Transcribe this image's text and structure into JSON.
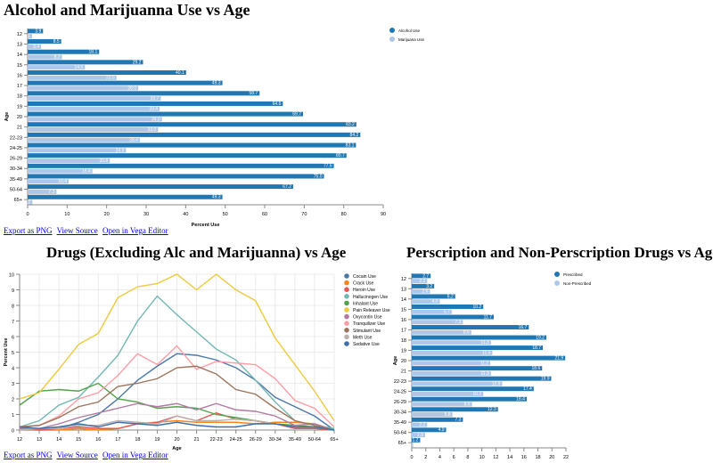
{
  "links": {
    "png": "Export as PNG",
    "source": "View Source",
    "editor": "Open in Vega Editor"
  },
  "colors": {
    "blue": "#1f77b4",
    "lightblue": "#aec7e8"
  },
  "chart_data": [
    {
      "type": "bar",
      "orientation": "horizontal",
      "title": "Alcohol and Marijuanna Use vs Age",
      "xlabel": "Percent Use",
      "ylabel": "Age",
      "xlim": [
        0,
        90
      ],
      "xticks": [
        "0",
        "10",
        "20",
        "30",
        "40",
        "50",
        "60",
        "70",
        "80",
        "90"
      ],
      "categories": [
        "12",
        "13",
        "14",
        "15",
        "16",
        "17",
        "18",
        "19",
        "20",
        "21",
        "22-23",
        "24-25",
        "26-29",
        "30-34",
        "35-49",
        "50-64",
        "65+"
      ],
      "series": [
        {
          "name": "Alcohol Use",
          "color": "#1f77b4",
          "values": [
            3.9,
            8.5,
            18.1,
            29.2,
            40.1,
            49.3,
            58.7,
            64.6,
            69.7,
            83.2,
            84.2,
            83.1,
            80.7,
            77.5,
            75.0,
            67.2,
            49.3
          ]
        },
        {
          "name": "Marijuana Use",
          "color": "#aec7e8",
          "values": [
            1.1,
            3.4,
            8.7,
            14.5,
            22.5,
            28.0,
            33.7,
            33.4,
            34.0,
            33.0,
            28.4,
            24.9,
            20.8,
            16.4,
            10.4,
            7.3,
            1.2
          ]
        }
      ],
      "legend": "top-right"
    },
    {
      "type": "line",
      "title": "Drugs (Excluding Alc and Marijuanna) vs Age",
      "xlabel": "Age",
      "ylabel": "Percent Use",
      "ylim": [
        0,
        10
      ],
      "yticks": [
        "0",
        "1",
        "2",
        "3",
        "4",
        "5",
        "6",
        "7",
        "8",
        "9",
        "10"
      ],
      "categories": [
        "12",
        "13",
        "14",
        "15",
        "16",
        "17",
        "18",
        "19",
        "20",
        "21",
        "22-23",
        "24-25",
        "26-29",
        "30-34",
        "35-49",
        "50-64",
        "65+"
      ],
      "series": [
        {
          "name": "Cocain Use",
          "color": "#4c78a8",
          "values": [
            0.1,
            0.1,
            0.1,
            0.5,
            1.0,
            2.0,
            3.2,
            4.1,
            4.9,
            4.8,
            4.5,
            4.0,
            3.2,
            2.1,
            1.5,
            0.9,
            0.0
          ]
        },
        {
          "name": "Crack Use",
          "color": "#f58518",
          "values": [
            0.0,
            0.0,
            0.0,
            0.1,
            0.0,
            0.1,
            0.4,
            0.5,
            0.6,
            0.5,
            0.5,
            0.5,
            0.4,
            0.5,
            0.5,
            0.4,
            0.0
          ]
        },
        {
          "name": "Heroin Use",
          "color": "#e45756",
          "values": [
            0.1,
            0.0,
            0.1,
            0.2,
            0.1,
            0.1,
            0.4,
            0.5,
            0.9,
            0.6,
            1.1,
            0.7,
            0.6,
            0.4,
            0.1,
            0.1,
            0.0
          ]
        },
        {
          "name": "Hallucinogen Use",
          "color": "#72b7b2",
          "values": [
            0.2,
            0.6,
            1.6,
            2.1,
            3.4,
            4.8,
            7.0,
            8.6,
            7.4,
            6.3,
            5.2,
            4.5,
            3.2,
            1.8,
            0.6,
            0.3,
            0.1
          ]
        },
        {
          "name": "Inhalant Use",
          "color": "#54a24b",
          "values": [
            1.6,
            2.5,
            2.6,
            2.5,
            3.0,
            2.0,
            1.8,
            1.4,
            1.5,
            1.4,
            1.0,
            0.8,
            0.6,
            0.4,
            0.3,
            0.2,
            0.0
          ]
        },
        {
          "name": "Pain Releaver Use",
          "color": "#eeca3b",
          "values": [
            2.0,
            2.4,
            3.9,
            5.5,
            6.2,
            8.5,
            9.2,
            9.4,
            10.0,
            9.0,
            10.0,
            9.0,
            8.3,
            5.9,
            4.2,
            2.5,
            0.6
          ]
        },
        {
          "name": "Oxycontin Use",
          "color": "#b279a2",
          "values": [
            0.1,
            0.1,
            0.4,
            0.8,
            1.1,
            1.4,
            1.7,
            1.5,
            1.7,
            1.3,
            1.7,
            1.3,
            1.2,
            0.9,
            0.3,
            0.4,
            0.0
          ]
        },
        {
          "name": "Tranquilizer Use",
          "color": "#ff9da6",
          "values": [
            0.2,
            0.3,
            0.9,
            2.0,
            2.4,
            3.5,
            4.9,
            4.2,
            5.4,
            3.9,
            4.4,
            4.3,
            4.2,
            3.3,
            1.9,
            1.4,
            0.2
          ]
        },
        {
          "name": "Stimulant Use",
          "color": "#9d755d",
          "values": [
            0.2,
            0.3,
            0.8,
            1.5,
            1.8,
            2.8,
            3.0,
            3.3,
            4.0,
            4.1,
            3.6,
            2.6,
            2.3,
            1.4,
            0.6,
            0.3,
            0.0
          ]
        },
        {
          "name": "Meth Use",
          "color": "#bab0ac",
          "values": [
            0.0,
            0.1,
            0.1,
            0.3,
            0.3,
            0.6,
            0.5,
            0.4,
            0.9,
            0.6,
            0.6,
            0.7,
            0.6,
            0.4,
            0.2,
            0.2,
            0.0
          ]
        },
        {
          "name": "Sedative Use",
          "color": "#3c6ea8",
          "values": [
            0.2,
            0.1,
            0.2,
            0.4,
            0.2,
            0.5,
            0.4,
            0.3,
            0.5,
            0.3,
            0.2,
            0.2,
            0.4,
            0.4,
            0.2,
            0.2,
            0.0
          ]
        }
      ],
      "legend": "top-right"
    },
    {
      "type": "bar",
      "orientation": "horizontal",
      "title": "Perscription and Non-Perscription Drugs vs Age",
      "ylabel": "Age",
      "xlim": [
        0,
        22
      ],
      "xticks": [
        "0",
        "2",
        "4",
        "6",
        "8",
        "10",
        "12",
        "14",
        "16",
        "18",
        "20",
        "22"
      ],
      "categories": [
        "12",
        "13",
        "14",
        "15",
        "16",
        "17",
        "18",
        "19",
        "20",
        "21",
        "22-23",
        "24-25",
        "26-29",
        "30-34",
        "35-49",
        "50-64",
        "65+"
      ],
      "series": [
        {
          "name": "Prescribed",
          "color": "#1f77b4",
          "values": [
            2.7,
            3.2,
            6.2,
            10.2,
            11.7,
            16.7,
            19.2,
            18.7,
            21.9,
            18.6,
            19.9,
            17.4,
            16.4,
            12.3,
            7.3,
            4.9,
            1.2
          ]
        },
        {
          "name": "Non-Prescribed",
          "color": "#aec7e8",
          "values": [
            2.2,
            2.6,
            4.0,
            5.7,
            7.3,
            8.5,
            11.3,
            11.5,
            11.2,
            11.3,
            12.9,
            10.2,
            8.6,
            5.8,
            2.2,
            1.9,
            0.2
          ]
        }
      ],
      "legend": "top-right"
    }
  ]
}
